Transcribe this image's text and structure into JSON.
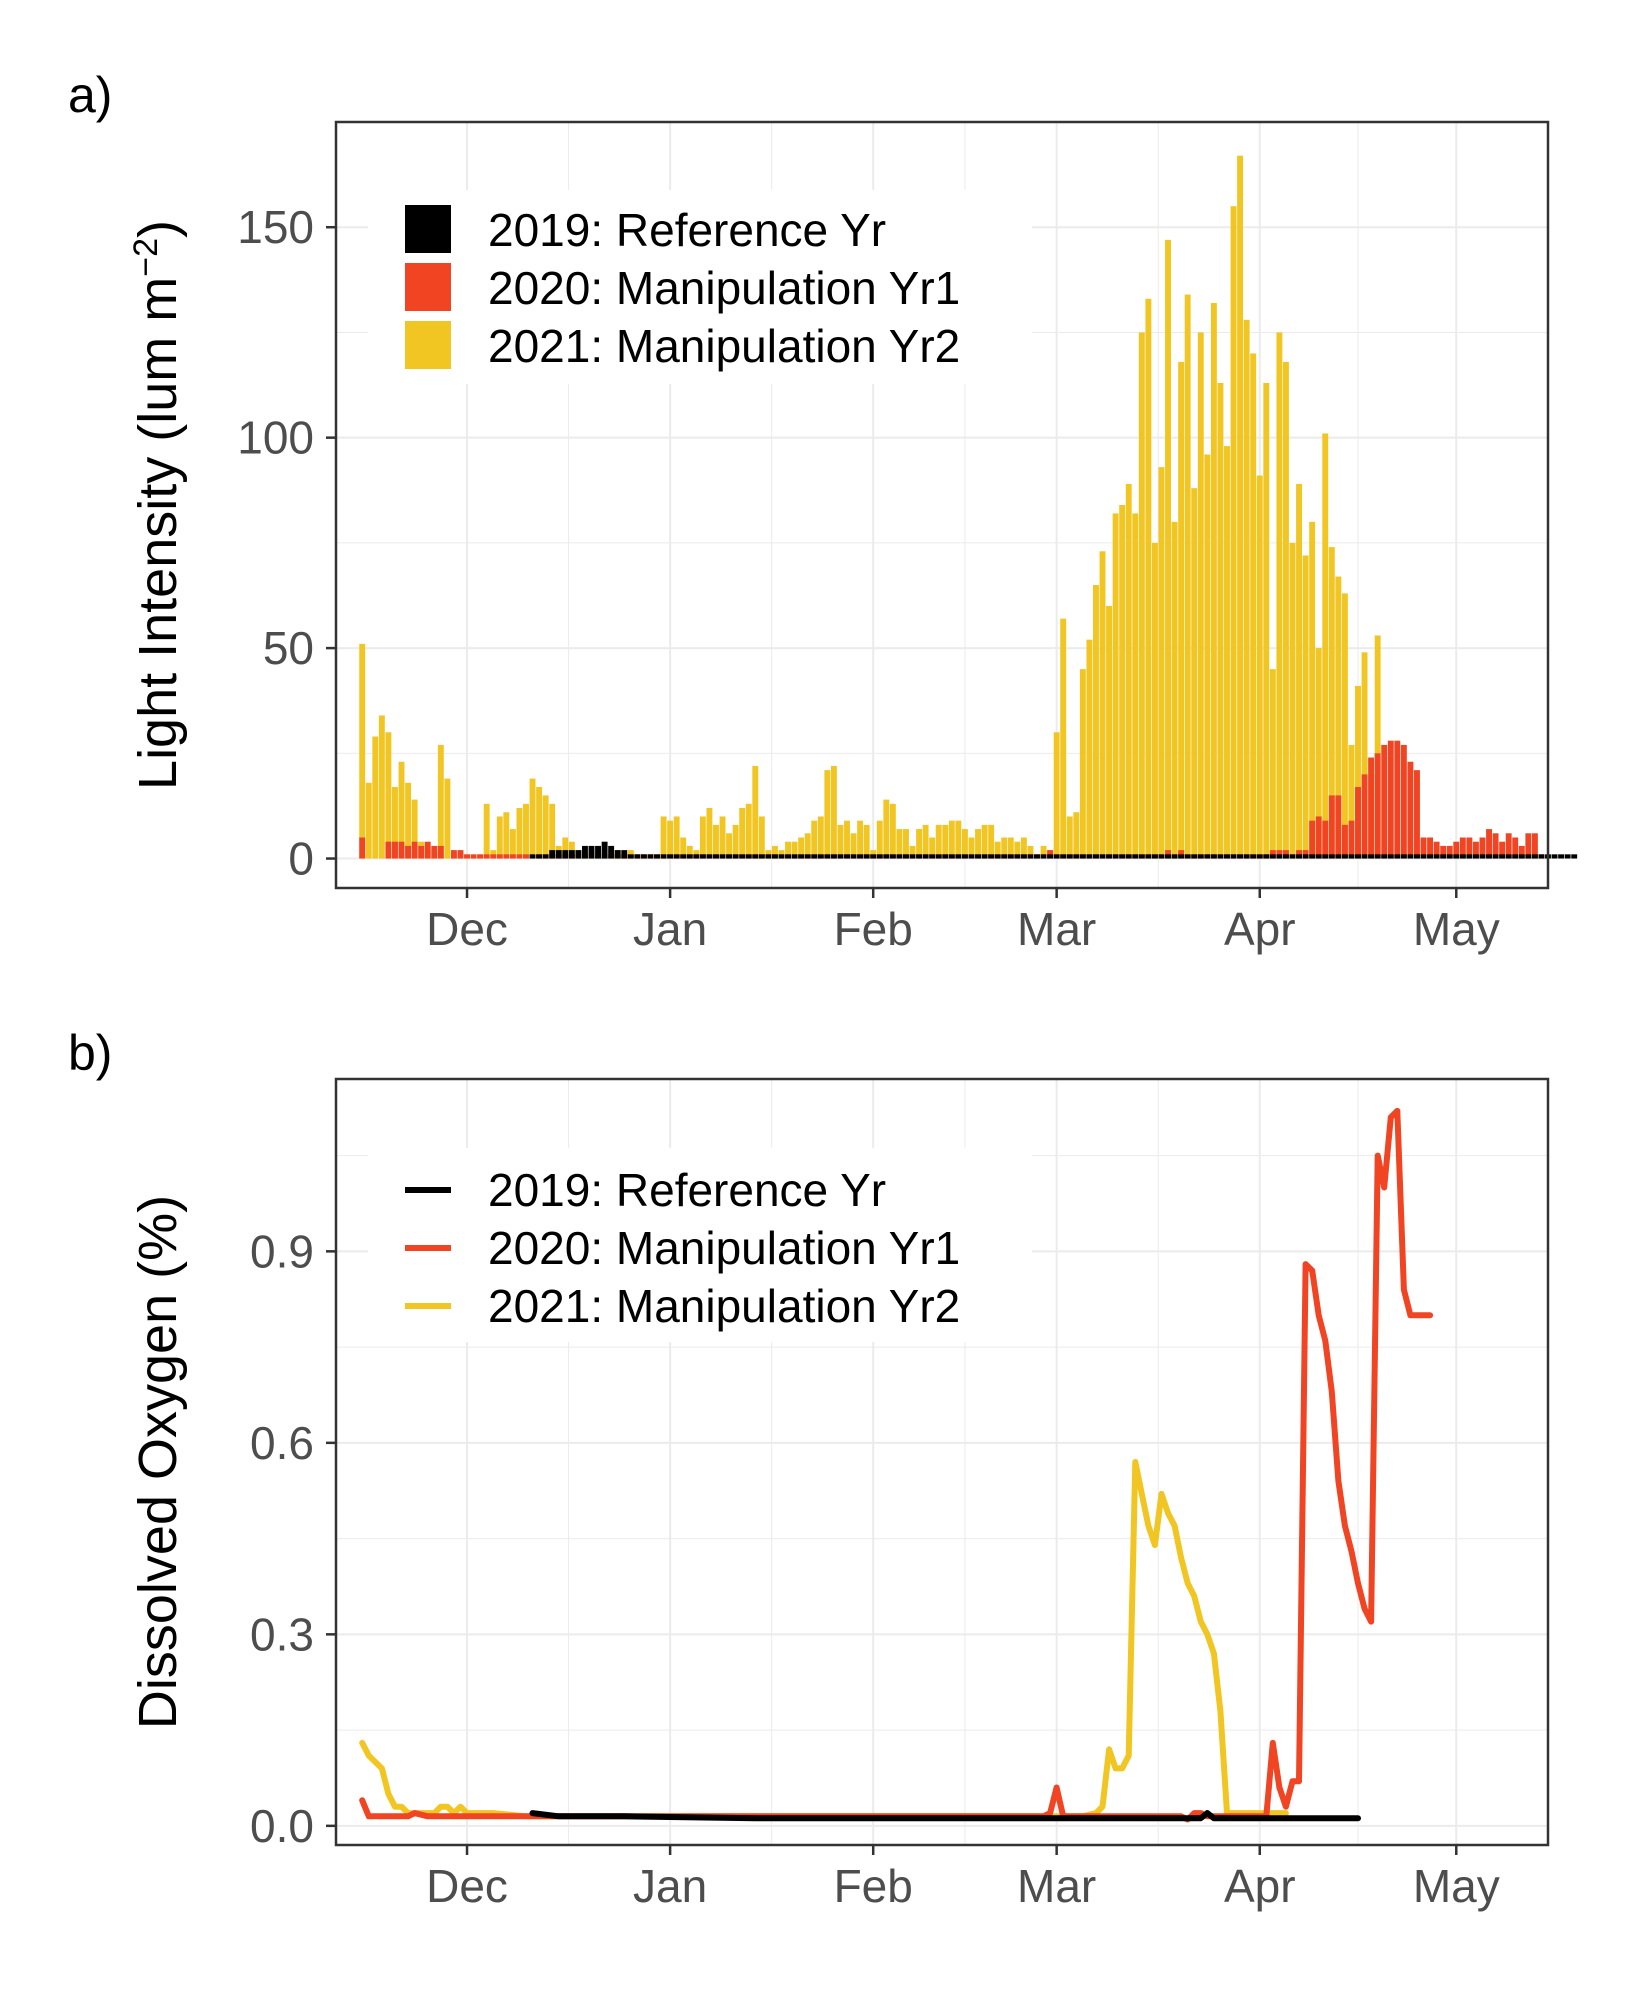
{
  "colors": {
    "2019": "#000000",
    "2020": "#f04423",
    "2021": "#f1c522",
    "grid": "#ebebeb",
    "frame": "#333333",
    "tick_text": "#4d4d4d"
  },
  "chart_data": [
    {
      "panel_label": "a)",
      "type": "bar",
      "ylabel_main": "Light Intensity (lum m",
      "ylabel_exp": "−2",
      "ylabel_close": ")",
      "xlabel": "",
      "x_units": "day of season (Nov 15 = 0)",
      "ylim": [
        -7,
        175
      ],
      "yticks": [
        0,
        50,
        100,
        150
      ],
      "ytick_labels": [
        "0",
        "50",
        "100",
        "150"
      ],
      "xlim": [
        -4,
        181
      ],
      "xticks": [
        16,
        47,
        78,
        106,
        137,
        167
      ],
      "xtick_labels": [
        "Dec",
        "Jan",
        "Feb",
        "Mar",
        "Apr",
        "May"
      ],
      "legend": {
        "position": "top-left",
        "labels": [
          "2019: Reference Yr",
          "2020: Manipulation Yr1",
          "2021: Manipulation Yr2"
        ]
      },
      "series": [
        {
          "name": "2021: Manipulation Yr2",
          "color_key": "2021",
          "start": 0,
          "values": [
            51,
            18,
            29,
            34,
            30,
            17,
            23,
            18,
            14,
            4,
            3,
            2,
            27,
            19,
            1,
            1,
            1,
            0,
            1,
            13,
            2,
            10,
            11,
            7,
            12,
            13,
            19,
            17,
            15,
            13,
            3,
            5,
            4,
            2,
            1,
            2,
            2,
            1,
            2,
            2,
            1,
            2,
            1,
            1,
            1,
            1,
            10,
            9,
            10,
            5,
            3,
            2,
            10,
            12,
            8,
            10,
            6,
            8,
            12,
            13,
            22,
            10,
            2,
            3,
            2,
            4,
            4,
            5,
            6,
            9,
            10,
            21,
            22,
            8,
            9,
            6,
            9,
            8,
            2,
            9,
            14,
            13,
            7,
            7,
            3,
            7,
            8,
            5,
            8,
            8,
            9,
            9,
            7,
            5,
            7,
            8,
            8,
            4,
            5,
            5,
            4,
            5,
            3,
            1,
            3,
            2,
            30,
            57,
            10,
            11,
            45,
            52,
            65,
            73,
            60,
            82,
            84,
            89,
            82,
            125,
            133,
            75,
            93,
            147,
            80,
            118,
            134,
            88,
            125,
            96,
            132,
            113,
            98,
            155,
            167,
            128,
            120,
            91,
            113,
            45,
            125,
            118,
            75,
            89,
            72,
            80,
            50,
            101,
            74,
            67,
            63,
            27,
            41,
            49,
            20,
            53
          ]
        },
        {
          "name": "2020: Manipulation Yr1",
          "color_key": "2020",
          "start": 0,
          "values": [
            5,
            0,
            0,
            0,
            4,
            4,
            4,
            3,
            4,
            3,
            4,
            3,
            3,
            0,
            2,
            2,
            1,
            1,
            1,
            1,
            1,
            1,
            1,
            1,
            1,
            1,
            0,
            1,
            1,
            1,
            1,
            1,
            1,
            1,
            1,
            1,
            1,
            1,
            1,
            1,
            1,
            1,
            1,
            1,
            1,
            1,
            1,
            1,
            1,
            1,
            1,
            1,
            1,
            1,
            1,
            1,
            1,
            1,
            1,
            1,
            1,
            1,
            1,
            1,
            1,
            1,
            1,
            1,
            1,
            1,
            1,
            1,
            1,
            1,
            1,
            1,
            1,
            1,
            1,
            1,
            1,
            1,
            1,
            1,
            1,
            1,
            1,
            1,
            1,
            1,
            1,
            1,
            1,
            1,
            1,
            1,
            1,
            1,
            1,
            1,
            1,
            1,
            1,
            1,
            1,
            2,
            1,
            1,
            1,
            1,
            1,
            1,
            1,
            1,
            1,
            1,
            1,
            1,
            1,
            1,
            1,
            1,
            1,
            2,
            1,
            2,
            1,
            1,
            1,
            1,
            1,
            1,
            1,
            1,
            1,
            1,
            1,
            1,
            1,
            2,
            2,
            2,
            1,
            2,
            2,
            9,
            10,
            9,
            15,
            15,
            8,
            9,
            17,
            20,
            24,
            25,
            27,
            28,
            28,
            27,
            23,
            21,
            5,
            5,
            4,
            3,
            3,
            4,
            5,
            5,
            4,
            5,
            7,
            6,
            4,
            6,
            5,
            3,
            6,
            6,
            1
          ]
        },
        {
          "name": "2019: Reference Yr",
          "color_key": "2019",
          "start": 26,
          "values": [
            1,
            1,
            1,
            2,
            2,
            2,
            2,
            2,
            3,
            3,
            3,
            4,
            3,
            2,
            2,
            1,
            1,
            1,
            1,
            1,
            1,
            1,
            1,
            1,
            1,
            1,
            1,
            1,
            1,
            1,
            1,
            1,
            1,
            1,
            1,
            1,
            1,
            1,
            1,
            1,
            1,
            1,
            1,
            1,
            1,
            1,
            1,
            1,
            1,
            1,
            1,
            1,
            1,
            1,
            1,
            1,
            1,
            1,
            1,
            1,
            1,
            1,
            1,
            1,
            1,
            1,
            1,
            1,
            1,
            1,
            1,
            1,
            1,
            1,
            1,
            1,
            1,
            1,
            1,
            1,
            1,
            1,
            1,
            1,
            1,
            1,
            1,
            1,
            1,
            1,
            1,
            1,
            1,
            1,
            1,
            1,
            1,
            1,
            1,
            1,
            1,
            1,
            1,
            1,
            1,
            1,
            1,
            1,
            1,
            1,
            1,
            1,
            1,
            1,
            1,
            1,
            1,
            1,
            1,
            1,
            1,
            1,
            1,
            1,
            1,
            1,
            1,
            1,
            1,
            1,
            1,
            1,
            1,
            1,
            1,
            1,
            1,
            1,
            1,
            1,
            1,
            1,
            1,
            1,
            1,
            1,
            1,
            1,
            1,
            1,
            1,
            1,
            1,
            1,
            1,
            1,
            1,
            1,
            1,
            1
          ]
        }
      ]
    },
    {
      "panel_label": "b)",
      "type": "line",
      "ylabel": "Dissolved Oxygen (%)",
      "xlabel": "",
      "x_units": "day of season (Nov 15 = 0)",
      "ylim": [
        -0.03,
        1.17
      ],
      "yticks": [
        0.0,
        0.3,
        0.6,
        0.9
      ],
      "ytick_labels": [
        "0.0",
        "0.3",
        "0.6",
        "0.9"
      ],
      "xlim": [
        -4,
        181
      ],
      "xticks": [
        16,
        47,
        78,
        106,
        137,
        167
      ],
      "xtick_labels": [
        "Dec",
        "Jan",
        "Feb",
        "Mar",
        "Apr",
        "May"
      ],
      "legend": {
        "position": "top-left",
        "labels": [
          "2019: Reference Yr",
          "2020: Manipulation Yr1",
          "2021: Manipulation Yr2"
        ]
      },
      "series": [
        {
          "name": "2021: Manipulation Yr2",
          "color_key": "2021",
          "x": [
            0,
            1,
            2,
            3,
            4,
            5,
            6,
            7,
            8,
            9,
            10,
            11,
            12,
            13,
            14,
            15,
            16,
            17,
            18,
            19,
            20,
            25,
            30,
            40,
            50,
            60,
            70,
            80,
            90,
            100,
            105,
            110,
            112,
            113,
            114,
            115,
            116,
            117,
            118,
            119,
            120,
            121,
            122,
            123,
            124,
            125,
            126,
            127,
            128,
            129,
            130,
            131,
            132,
            133,
            134,
            135,
            136,
            137,
            138,
            139,
            140,
            141
          ],
          "y": [
            0.13,
            0.11,
            0.1,
            0.09,
            0.05,
            0.03,
            0.03,
            0.02,
            0.02,
            0.02,
            0.02,
            0.02,
            0.03,
            0.03,
            0.02,
            0.03,
            0.02,
            0.02,
            0.02,
            0.02,
            0.02,
            0.015,
            0.015,
            0.015,
            0.015,
            0.015,
            0.015,
            0.015,
            0.015,
            0.015,
            0.015,
            0.015,
            0.02,
            0.03,
            0.12,
            0.09,
            0.09,
            0.11,
            0.57,
            0.52,
            0.47,
            0.44,
            0.52,
            0.49,
            0.47,
            0.42,
            0.38,
            0.36,
            0.32,
            0.3,
            0.27,
            0.18,
            0.02,
            0.02,
            0.02,
            0.02,
            0.02,
            0.02,
            0.02,
            0.02,
            0.02,
            0.02
          ]
        },
        {
          "name": "2020: Manipulation Yr1",
          "color_key": "2020",
          "x": [
            0,
            1,
            2,
            3,
            4,
            5,
            6,
            7,
            8,
            10,
            20,
            40,
            60,
            80,
            100,
            104,
            105,
            106,
            107,
            110,
            120,
            124,
            125,
            126,
            127,
            128,
            129,
            130,
            131,
            132,
            133,
            134,
            135,
            136,
            137,
            138,
            139,
            140,
            141,
            142,
            143,
            144,
            145,
            146,
            147,
            148,
            149,
            150,
            151,
            152,
            153,
            154,
            155,
            156,
            157,
            158,
            159,
            160,
            161,
            162,
            163
          ],
          "y": [
            0.04,
            0.015,
            0.015,
            0.015,
            0.015,
            0.015,
            0.015,
            0.015,
            0.02,
            0.015,
            0.015,
            0.015,
            0.015,
            0.015,
            0.015,
            0.015,
            0.02,
            0.06,
            0.015,
            0.015,
            0.015,
            0.015,
            0.015,
            0.01,
            0.02,
            0.02,
            0.015,
            0.015,
            0.015,
            0.015,
            0.015,
            0.015,
            0.015,
            0.015,
            0.015,
            0.015,
            0.13,
            0.06,
            0.03,
            0.07,
            0.07,
            0.88,
            0.87,
            0.8,
            0.76,
            0.68,
            0.54,
            0.47,
            0.43,
            0.38,
            0.34,
            0.32,
            1.05,
            1.0,
            1.11,
            1.12,
            0.84,
            0.8,
            0.8,
            0.8,
            0.8
          ]
        },
        {
          "name": "2019: Reference Yr",
          "color_key": "2019",
          "x": [
            26,
            30,
            40,
            60,
            80,
            100,
            120,
            128,
            129,
            130,
            140,
            150,
            152
          ],
          "y": [
            0.02,
            0.015,
            0.015,
            0.012,
            0.012,
            0.012,
            0.012,
            0.012,
            0.02,
            0.012,
            0.012,
            0.012,
            0.012
          ]
        }
      ]
    }
  ]
}
